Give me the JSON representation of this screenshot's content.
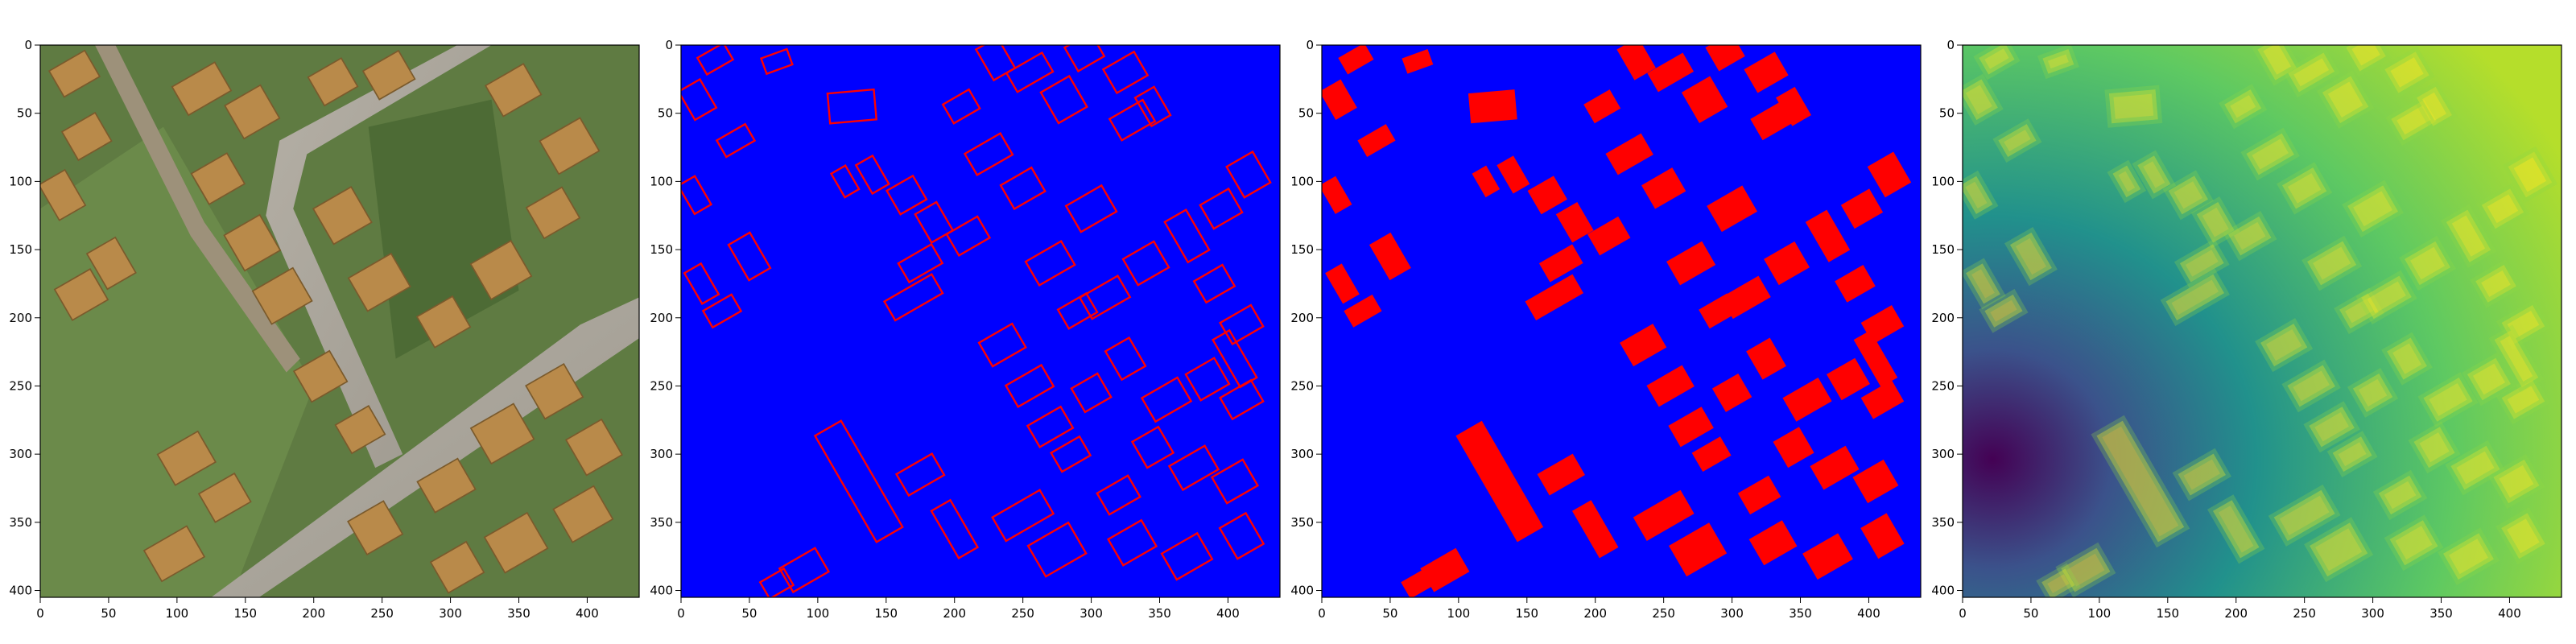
{
  "figure": {
    "panels": [
      {
        "kind": "aerial-photo",
        "description_name": "satellite-image",
        "x_ticks": [
          0,
          50,
          100,
          150,
          200,
          250,
          300,
          350,
          400
        ],
        "y_ticks": [
          0,
          50,
          100,
          150,
          200,
          250,
          300,
          350,
          400
        ],
        "x_range": [
          0,
          438
        ],
        "y_range": [
          0,
          405
        ]
      },
      {
        "kind": "outline-mask",
        "description_name": "building-outline-mask",
        "x_ticks": [
          0,
          50,
          100,
          150,
          200,
          250,
          300,
          350,
          400
        ],
        "y_ticks": [
          0,
          50,
          100,
          150,
          200,
          250,
          300,
          350,
          400
        ],
        "x_range": [
          0,
          438
        ],
        "y_range": [
          0,
          405
        ]
      },
      {
        "kind": "filled-mask",
        "description_name": "building-filled-mask",
        "x_ticks": [
          0,
          50,
          100,
          150,
          200,
          250,
          300,
          350,
          400
        ],
        "y_ticks": [
          0,
          50,
          100,
          150,
          200,
          250,
          300,
          350,
          400
        ],
        "x_range": [
          0,
          438
        ],
        "y_range": [
          0,
          405
        ]
      },
      {
        "kind": "distance-map",
        "description_name": "distance-transform-map",
        "x_ticks": [
          0,
          50,
          100,
          150,
          200,
          250,
          300,
          350,
          400
        ],
        "y_ticks": [
          0,
          50,
          100,
          150,
          200,
          250,
          300,
          350,
          400
        ],
        "x_range": [
          0,
          438
        ],
        "y_range": [
          0,
          405
        ]
      }
    ],
    "colors": {
      "mask_background": "#0000ff",
      "mask_building": "#ff0000",
      "aerial_vegetation": "#5c7a3e",
      "aerial_road": "#a8a39a",
      "aerial_roof": "#b98a4a",
      "viridis_low": "#440154",
      "viridis_mid": "#21918c",
      "viridis_high": "#fde725"
    }
  }
}
